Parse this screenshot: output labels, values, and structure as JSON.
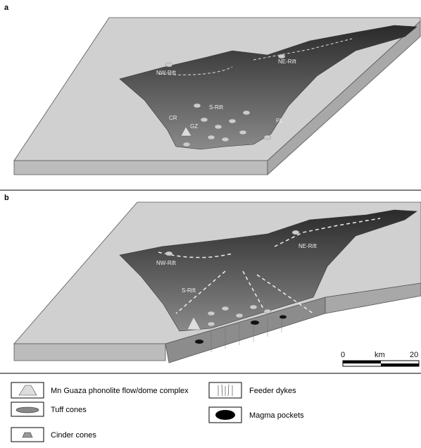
{
  "panel_a": {
    "label": "a",
    "annotations": [
      "NW-Rift",
      "NE-Rift",
      "S-Rift",
      "CR",
      "GZ",
      "PL"
    ]
  },
  "panel_b": {
    "label": "b",
    "annotations": [
      "NW-Rift",
      "NE-Rift",
      "S-Rift"
    ],
    "scale_bar": {
      "start": "0",
      "unit": "km",
      "end": "20"
    }
  },
  "legend": {
    "items": [
      "Mn  Guaza phonolite flow/dome complex",
      "Tuff cones",
      "Cinder cones",
      "Feeder dykes",
      "Magma pockets"
    ]
  }
}
